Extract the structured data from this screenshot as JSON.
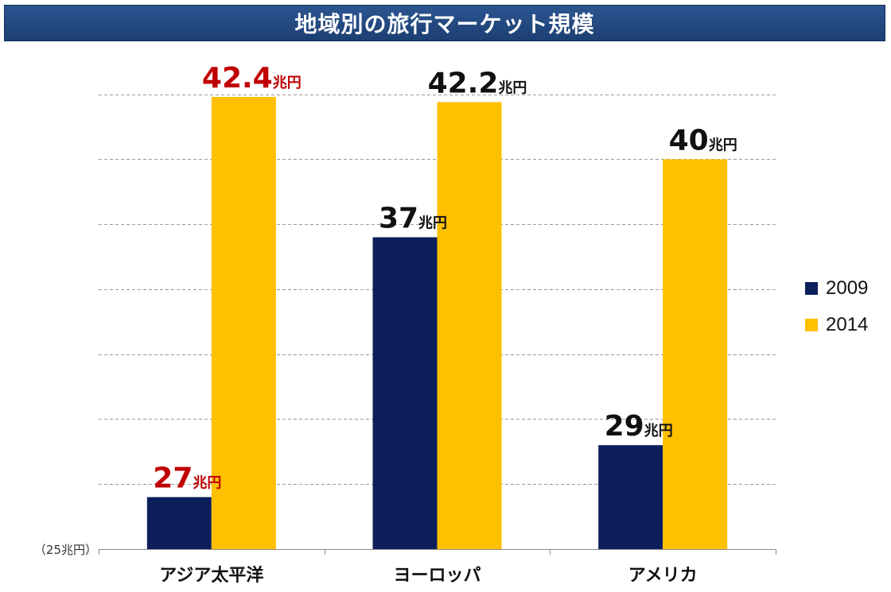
{
  "title": "地域別の旅行マーケット規模",
  "chart_data": {
    "type": "bar",
    "title": "地域別の旅行マーケット規模",
    "categories": [
      "アジア太平洋",
      "ヨーロッパ",
      "アメリカ"
    ],
    "series": [
      {
        "name": "2009",
        "values": [
          27,
          37,
          29
        ],
        "color": "#0c1f5c"
      },
      {
        "name": "2014",
        "values": [
          42.4,
          42.2,
          40
        ],
        "color": "#ffc000"
      }
    ],
    "value_unit": "兆円",
    "highlight_category_index": 0,
    "highlight_color": "#c00000",
    "label_color": "#111111",
    "ylim": [
      25,
      43.5
    ],
    "y_gridlines": [
      27.5,
      30,
      32.5,
      35,
      37.5,
      40,
      42.5
    ],
    "y_axis_note": "（25兆円）",
    "grid": true,
    "legend_position": "right"
  }
}
